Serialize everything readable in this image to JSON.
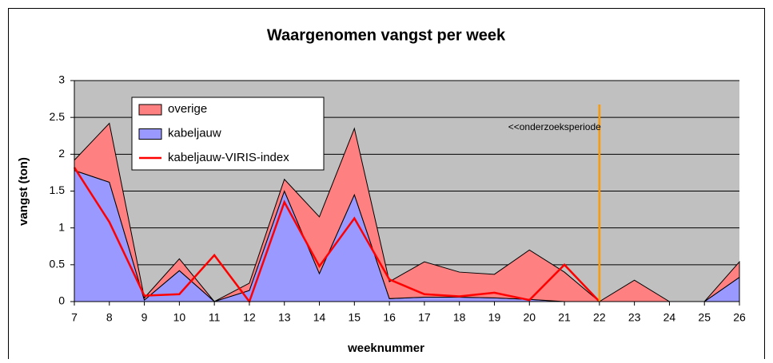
{
  "chart_data": {
    "type": "stacked-area-line",
    "title": "Waargenomen vangst per week",
    "xlabel": "weeknummer",
    "ylabel": "vangst (ton)",
    "x": [
      7,
      8,
      9,
      10,
      11,
      12,
      13,
      14,
      15,
      16,
      17,
      18,
      19,
      20,
      21,
      22,
      23,
      24,
      25,
      26
    ],
    "series": [
      {
        "name": "kabeljauw",
        "kind": "area",
        "color": "#9999ff",
        "values": [
          1.78,
          1.62,
          0.02,
          0.42,
          0,
          0.15,
          1.5,
          0.38,
          1.45,
          0.04,
          0.06,
          0.06,
          0.05,
          0.03,
          0,
          0,
          0,
          0,
          0,
          0.33
        ]
      },
      {
        "name": "overige",
        "kind": "area",
        "color": "#ff8080",
        "values": [
          0.14,
          0.8,
          0.03,
          0.16,
          0,
          0.1,
          0.16,
          0.77,
          0.9,
          0.23,
          0.48,
          0.34,
          0.32,
          0.67,
          0.4,
          0,
          0.29,
          0,
          0,
          0.21
        ]
      },
      {
        "name": "kabeljauw-VIRIS-index",
        "kind": "line",
        "color": "#ff0000",
        "values": [
          1.82,
          1.08,
          0.08,
          0.1,
          0.63,
          0,
          1.35,
          0.48,
          1.13,
          0.3,
          0.1,
          0.07,
          0.12,
          0.02,
          0.5,
          0,
          null,
          null,
          null,
          null
        ]
      }
    ],
    "legend_order": [
      1,
      0,
      2
    ],
    "vline": {
      "x": 22,
      "color": "#ff9900",
      "label": "<<onderzoeksperiode"
    },
    "xlim": [
      7,
      26
    ],
    "xticks": [
      7,
      8,
      9,
      10,
      11,
      12,
      13,
      14,
      15,
      16,
      17,
      18,
      19,
      20,
      21,
      22,
      23,
      24,
      25,
      26
    ],
    "ylim": [
      0,
      3
    ],
    "yticks": [
      0,
      0.5,
      1,
      1.5,
      2,
      2.5,
      3
    ],
    "grid": true,
    "legend": "upper left"
  }
}
